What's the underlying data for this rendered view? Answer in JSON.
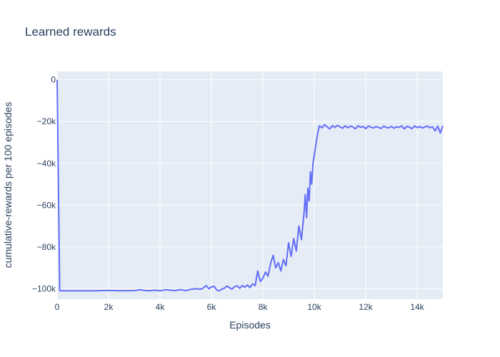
{
  "chart_data": {
    "type": "line",
    "title": "Learned rewards",
    "xlabel": "Episodes",
    "ylabel": "cumulative-rewards per 100 episodes",
    "xlim": [
      0,
      15000
    ],
    "ylim": [
      -105000,
      4000
    ],
    "grid": true,
    "legend": "none",
    "colors": {
      "plot_bg": "#e5ecf6",
      "grid": "#ffffff",
      "line": "#636efa",
      "text": "#2a3f5f"
    },
    "x_ticks": [
      {
        "value": 0,
        "label": "0"
      },
      {
        "value": 2000,
        "label": "2k"
      },
      {
        "value": 4000,
        "label": "4k"
      },
      {
        "value": 6000,
        "label": "6k"
      },
      {
        "value": 8000,
        "label": "8k"
      },
      {
        "value": 10000,
        "label": "10k"
      },
      {
        "value": 12000,
        "label": "12k"
      },
      {
        "value": 14000,
        "label": "14k"
      }
    ],
    "y_ticks": [
      {
        "value": 0,
        "label": "0"
      },
      {
        "value": -20000,
        "label": "−20k"
      },
      {
        "value": -40000,
        "label": "−40k"
      },
      {
        "value": -60000,
        "label": "−60k"
      },
      {
        "value": -80000,
        "label": "−80k"
      },
      {
        "value": -100000,
        "label": "−100k"
      }
    ],
    "series": [
      {
        "x": [
          0,
          100,
          500,
          1000,
          1500,
          2000,
          2500,
          3000,
          3200,
          3400,
          3600,
          3800,
          4000,
          4200,
          4400,
          4600,
          4800,
          5000,
          5200,
          5400,
          5600,
          5700,
          5800,
          5900,
          6000,
          6100,
          6200,
          6300,
          6400,
          6500,
          6600,
          6700,
          6800,
          6900,
          7000,
          7100,
          7200,
          7300,
          7400,
          7500,
          7600,
          7700,
          7800,
          7900,
          8000,
          8100,
          8200,
          8300,
          8400,
          8500,
          8600,
          8700,
          8800,
          8900,
          9000,
          9100,
          9200,
          9300,
          9400,
          9500,
          9600,
          9650,
          9700,
          9750,
          9800,
          9850,
          9900,
          9950,
          10000,
          10050,
          10100,
          10150,
          10200,
          10300,
          10400,
          10500,
          10600,
          10700,
          10800,
          10900,
          11000,
          11100,
          11200,
          11300,
          11400,
          11500,
          11600,
          11700,
          11800,
          11900,
          12000,
          12100,
          12200,
          12300,
          12400,
          12500,
          12600,
          12700,
          12800,
          12900,
          13000,
          13100,
          13200,
          13300,
          13400,
          13500,
          13600,
          13700,
          13800,
          13900,
          14000,
          14100,
          14200,
          14300,
          14400,
          14500,
          14600,
          14700,
          14800,
          14900,
          15000
        ],
        "y": [
          0,
          -101000,
          -101000,
          -101000,
          -101000,
          -100800,
          -101000,
          -100900,
          -100500,
          -100800,
          -101000,
          -100700,
          -101000,
          -100500,
          -100700,
          -100900,
          -100400,
          -100900,
          -100300,
          -100000,
          -100200,
          -99500,
          -98500,
          -100000,
          -99200,
          -98800,
          -100500,
          -101000,
          -100200,
          -99800,
          -98700,
          -99500,
          -100200,
          -99000,
          -98600,
          -99800,
          -98500,
          -99300,
          -98200,
          -99500,
          -97700,
          -98500,
          -91500,
          -96500,
          -95000,
          -92000,
          -94000,
          -88000,
          -84000,
          -90000,
          -87500,
          -91500,
          -86000,
          -89000,
          -78000,
          -84500,
          -76000,
          -82000,
          -70000,
          -76500,
          -64000,
          -55000,
          -66000,
          -52000,
          -58000,
          -44000,
          -50000,
          -40000,
          -36000,
          -32000,
          -28000,
          -24500,
          -22000,
          -23000,
          -21500,
          -22500,
          -23500,
          -22000,
          -22800,
          -21800,
          -22500,
          -23200,
          -22000,
          -23000,
          -22200,
          -22600,
          -23500,
          -22000,
          -22800,
          -22300,
          -23400,
          -22100,
          -22700,
          -23100,
          -22400,
          -22800,
          -23300,
          -22200,
          -22900,
          -23000,
          -22300,
          -23200,
          -22500,
          -22800,
          -22100,
          -23500,
          -22300,
          -22700,
          -23400,
          -22100,
          -22900,
          -22400,
          -23100,
          -22600,
          -22200,
          -23000,
          -22500,
          -24500,
          -22200,
          -25500,
          -22000
        ]
      }
    ]
  }
}
